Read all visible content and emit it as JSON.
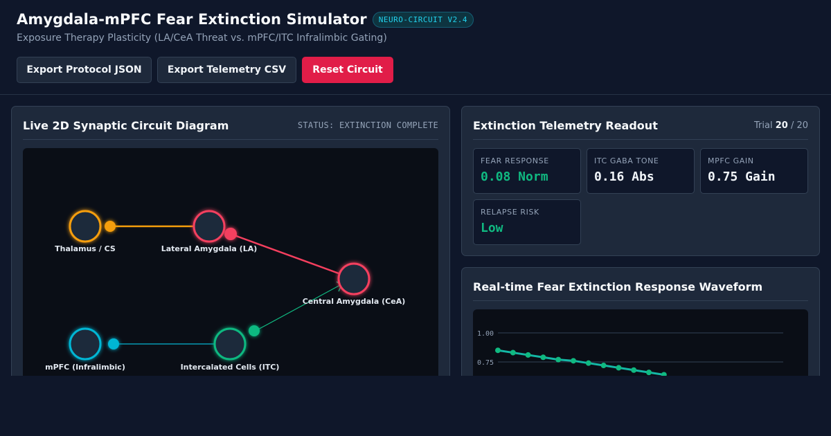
{
  "header": {
    "title": "Amygdala-mPFC Fear Extinction Simulator",
    "badge": "NEURO-CIRCUIT V2.4",
    "subtitle": "Exposure Therapy Plasticity (LA/CeA Threat vs. mPFC/ITC Infralimbic Gating)"
  },
  "toolbar": {
    "export_json": "Export Protocol JSON",
    "export_csv": "Export Telemetry CSV",
    "reset": "Reset Circuit"
  },
  "colors": {
    "background": "#0f172a",
    "panel": "#1e293b",
    "danger": "#e11d48",
    "thalamus": "#f59e0b",
    "lateral_amygdala": "#f43f5e",
    "mpfc": "#06b6d4",
    "itc": "#10b981",
    "wave_line": "#14b8a6",
    "wave_point": "#10b981"
  },
  "circuit": {
    "title": "Live 2D Synaptic Circuit Diagram",
    "status": "STATUS: EXTINCTION COMPLETE",
    "nodes": {
      "thalamus": "Thalamus / CS",
      "la": "Lateral Amygdala (LA)",
      "cea": "Central Amygdala (CeA)",
      "mpfc": "mPFC (Infralimbic)",
      "itc": "Intercalated Cells (ITC)"
    }
  },
  "telemetry": {
    "title": "Extinction Telemetry Readout",
    "trial_prefix": "Trial",
    "trial_current": "20",
    "trial_total": "/ 20",
    "metrics": [
      {
        "label": "FEAR RESPONSE",
        "value": "0.08 Norm"
      },
      {
        "label": "ITC GABA TONE",
        "value": "0.16 Abs"
      },
      {
        "label": "MPFC GAIN",
        "value": "0.75 Gain"
      },
      {
        "label": "RELAPSE RISK",
        "value": "Low"
      }
    ]
  },
  "waveform": {
    "title": "Real-time Fear Extinction Response Waveform",
    "chart_data": {
      "type": "line",
      "y_ticks": [
        "1.00",
        "0.75"
      ],
      "ylim": [
        0,
        1.1
      ],
      "series": [
        {
          "values": [
            0.85,
            0.83,
            0.81,
            0.79,
            0.77,
            0.76,
            0.74,
            0.72,
            0.7,
            0.68,
            0.66,
            0.64
          ]
        }
      ]
    }
  }
}
